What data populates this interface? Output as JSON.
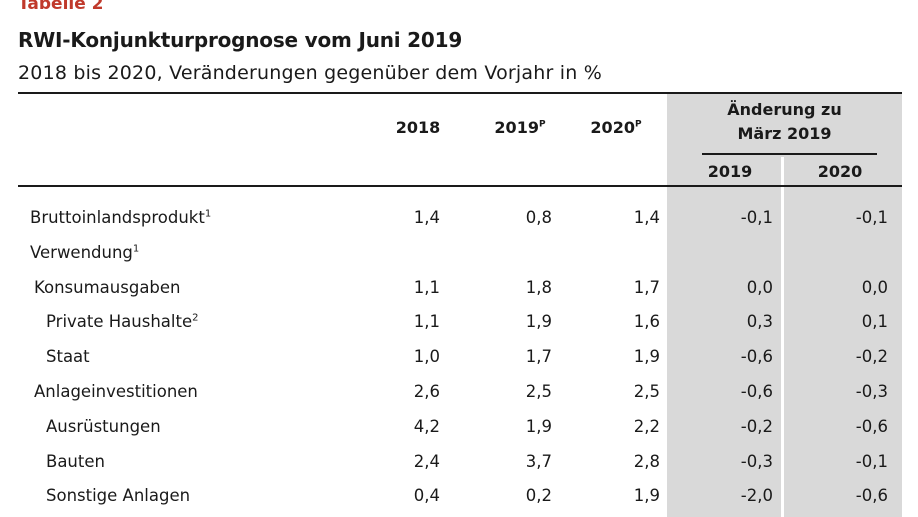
{
  "table_label": "Tabelle 2",
  "title": "RWI-Konjunkturprognose vom Juni 2019",
  "subtitle": "2018 bis 2020, Veränderungen gegenüber dem Vorjahr in %",
  "header": {
    "col_2018": "2018",
    "col_2019": "2019",
    "col_2019_sup": "P",
    "col_2020": "2020",
    "col_2020_sup": "P",
    "group_line1": "Änderung zu",
    "group_line2": "März 2019",
    "sub_2019": "2019",
    "sub_2020": "2020"
  },
  "rows": [
    {
      "label": "Bruttoinlandsprodukt",
      "sup": "1",
      "indent": 0,
      "values": [
        "1,4",
        "0,8",
        "1,4",
        "-0,1",
        "-0,1"
      ]
    },
    {
      "label": "Verwendung",
      "sup": "1",
      "indent": 0,
      "values": [
        "",
        "",
        "",
        "",
        ""
      ]
    },
    {
      "label": "Konsumausgaben",
      "sup": "",
      "indent": 1,
      "values": [
        "1,1",
        "1,8",
        "1,7",
        "0,0",
        "0,0"
      ]
    },
    {
      "label": "Private Haushalte",
      "sup": "2",
      "indent": 2,
      "values": [
        "1,1",
        "1,9",
        "1,6",
        "0,3",
        "0,1"
      ]
    },
    {
      "label": "Staat",
      "sup": "",
      "indent": 2,
      "values": [
        "1,0",
        "1,7",
        "1,9",
        "-0,6",
        "-0,2"
      ]
    },
    {
      "label": "Anlageinvestitionen",
      "sup": "",
      "indent": 1,
      "values": [
        "2,6",
        "2,5",
        "2,5",
        "-0,6",
        "-0,3"
      ]
    },
    {
      "label": "Ausrüstungen",
      "sup": "",
      "indent": 2,
      "values": [
        "4,2",
        "1,9",
        "2,2",
        "-0,2",
        "-0,6"
      ]
    },
    {
      "label": "Bauten",
      "sup": "",
      "indent": 2,
      "values": [
        "2,4",
        "3,7",
        "2,8",
        "-0,3",
        "-0,1"
      ]
    },
    {
      "label": "Sonstige Anlagen",
      "sup": "",
      "indent": 2,
      "values": [
        "0,4",
        "0,2",
        "1,9",
        "-2,0",
        "-0,6"
      ]
    }
  ]
}
